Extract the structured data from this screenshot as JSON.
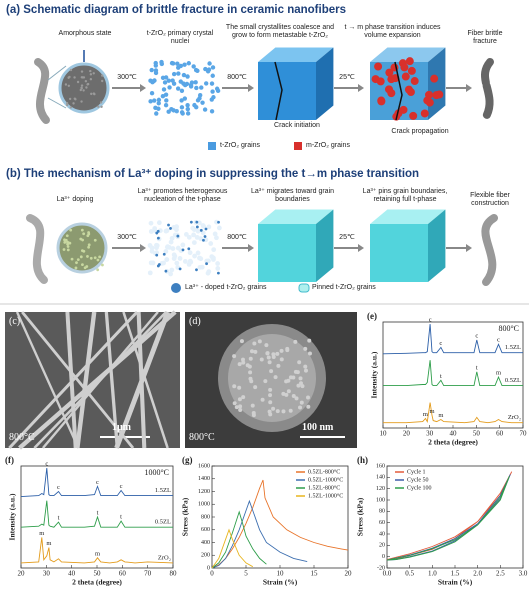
{
  "schematic_a": {
    "title": "(a) Schematic diagram of brittle fracture in ceramic nanofibers",
    "stages": [
      "Amorphous state",
      "t-ZrO₂ primary crystal nuclei",
      "The small crystallites coalesce and grow to form metastable t-ZrO₂",
      "t → m phase transition induces volume expansion",
      "Fiber brittle fracture"
    ],
    "temperatures": [
      "300℃",
      "800℃",
      "25℃"
    ],
    "callouts": [
      "Crack initiation",
      "Crack propagation"
    ],
    "legend": [
      "t-ZrO₂ grains",
      "m-ZrO₂ grains"
    ]
  },
  "schematic_b": {
    "title": "(b) The mechanism of La³⁺ doping in suppressing the t→m phase transition",
    "stages": [
      "La³⁺ doping",
      "La³⁺ promotes heterogenous nucleation of the t-phase",
      "La³⁺ migrates toward grain boundaries",
      "La³⁺ pins grain boundaries, retaining full t-phase",
      "Flexible fiber construction"
    ],
    "temperatures": [
      "300℃",
      "800℃",
      "25℃"
    ],
    "legend": [
      "La³⁺ - doped t-ZrO₂ grains",
      "Pinned t-ZrO₂ grains"
    ]
  },
  "images": [
    {
      "label": "(c)",
      "temperature": "800°C",
      "scale_bar": "1μm"
    },
    {
      "label": "(d)",
      "temperature": "800°C",
      "scale_bar": "100 nm"
    }
  ],
  "charts": [
    {
      "type": "line",
      "label": "(e)",
      "annotation": "800°C",
      "xlabel": "2 theta (degree)",
      "ylabel": "Intensity (a.u.)",
      "xlim": [
        10,
        70
      ],
      "xticks": [
        10,
        20,
        30,
        40,
        50,
        60,
        70
      ],
      "ylim": [
        0,
        100
      ],
      "x": [
        10,
        20,
        27,
        28.2,
        29,
        30.2,
        31,
        31.5,
        33,
        34.8,
        36,
        45,
        49,
        50.2,
        51.5,
        55,
        58,
        59.5,
        61,
        65,
        70
      ],
      "series": [
        {
          "name": "1.5ZL",
          "color": "#2c5fa8",
          "values": [
            70,
            70.5,
            71,
            71,
            72,
            98,
            72,
            71,
            71,
            76,
            71,
            71,
            71,
            83,
            71,
            71,
            71,
            79,
            71,
            71,
            71
          ]
        },
        {
          "name": "0.5ZL",
          "color": "#2e9e4a",
          "values": [
            40,
            40,
            41,
            41,
            43,
            64,
            41,
            40,
            40,
            45,
            40,
            40,
            40,
            53,
            40,
            40,
            40,
            48,
            40,
            40,
            40
          ]
        },
        {
          "name": "ZrO₂",
          "color": "#e39b1b",
          "values": [
            5,
            5,
            6,
            9,
            6,
            24,
            12,
            7,
            6,
            8,
            6,
            5,
            6,
            10,
            6,
            5,
            6,
            8,
            6,
            5,
            5
          ]
        }
      ],
      "annotations": [
        {
          "text": "c",
          "x": 30.2,
          "series": 0
        },
        {
          "text": "c",
          "x": 34.8,
          "series": 0
        },
        {
          "text": "c",
          "x": 50.2,
          "series": 0
        },
        {
          "text": "c",
          "x": 59.5,
          "series": 0
        },
        {
          "text": "t",
          "x": 34.8,
          "series": 1
        },
        {
          "text": "t",
          "x": 50.2,
          "series": 1
        },
        {
          "text": "m",
          "x": 59.5,
          "series": 1
        },
        {
          "text": "m",
          "x": 28.2,
          "series": 2
        },
        {
          "text": "m",
          "x": 31,
          "series": 2
        },
        {
          "text": "m",
          "x": 34.8,
          "series": 2
        }
      ]
    },
    {
      "type": "line",
      "label": "(f)",
      "annotation": "1000°C",
      "xlabel": "2 theta (degree)",
      "ylabel": "Intensity (a.u.)",
      "xlim": [
        20,
        80
      ],
      "xticks": [
        20,
        30,
        40,
        50,
        60,
        70,
        80
      ],
      "ylim": [
        0,
        100
      ],
      "x": [
        20,
        27,
        28.2,
        29,
        30.2,
        31,
        31.5,
        33,
        34.8,
        36,
        45,
        49,
        50.2,
        51.5,
        55,
        58,
        59.5,
        61,
        65,
        70,
        80
      ],
      "series": [
        {
          "name": "1.5ZL",
          "color": "#2c5fa8",
          "values": [
            70,
            71,
            73,
            72,
            98,
            72,
            71,
            71,
            75,
            71,
            71,
            72,
            80,
            71,
            71,
            71,
            76,
            71,
            71,
            71,
            71
          ]
        },
        {
          "name": "0.5ZL",
          "color": "#2e9e4a",
          "values": [
            40,
            41,
            43,
            42,
            66,
            42,
            41,
            40,
            45,
            40,
            40,
            41,
            50,
            40,
            40,
            40,
            46,
            40,
            40,
            40,
            40
          ]
        },
        {
          "name": "ZrO₂",
          "color": "#e39b1b",
          "values": [
            5,
            6,
            30,
            8,
            12,
            20,
            8,
            6,
            9,
            6,
            5,
            6,
            10,
            6,
            5,
            6,
            8,
            6,
            5,
            6,
            5
          ]
        }
      ],
      "annotations": [
        {
          "text": "c",
          "x": 30.2,
          "series": 0
        },
        {
          "text": "c",
          "x": 34.8,
          "series": 0
        },
        {
          "text": "c",
          "x": 50.2,
          "series": 0
        },
        {
          "text": "c",
          "x": 59.5,
          "series": 0
        },
        {
          "text": "t",
          "x": 34.8,
          "series": 1
        },
        {
          "text": "t",
          "x": 50.2,
          "series": 1
        },
        {
          "text": "t",
          "x": 59.5,
          "series": 1
        },
        {
          "text": "m",
          "x": 28.2,
          "series": 2
        },
        {
          "text": "m",
          "x": 31,
          "series": 2
        },
        {
          "text": "m",
          "x": 50.2,
          "series": 2
        }
      ]
    },
    {
      "type": "line",
      "label": "(g)",
      "xlabel": "Strain (%)",
      "ylabel": "Stress (kPa)",
      "legend": "upper right",
      "xlim": [
        0,
        20
      ],
      "xticks": [
        0,
        5,
        10,
        15,
        20
      ],
      "ylim": [
        0,
        1600
      ],
      "yticks": [
        0,
        200,
        400,
        600,
        800,
        1000,
        1200,
        1400,
        1600
      ],
      "series": [
        {
          "name": "0.5ZL-800°C",
          "color": "#e8742a",
          "x": [
            0,
            1,
            2,
            3,
            4,
            5,
            6,
            7,
            7.5,
            7.8,
            9,
            11,
            13,
            15,
            17,
            19,
            20
          ],
          "values": [
            0,
            50,
            150,
            300,
            480,
            700,
            950,
            1250,
            1380,
            1100,
            800,
            600,
            480,
            400,
            340,
            300,
            280
          ]
        },
        {
          "name": "0.5ZL-1000°C",
          "color": "#3d6fb0",
          "x": [
            0,
            1,
            2,
            3,
            4,
            5,
            5.5,
            6,
            7,
            8,
            10,
            12,
            14
          ],
          "values": [
            0,
            40,
            150,
            350,
            600,
            900,
            1050,
            900,
            600,
            400,
            250,
            150,
            100
          ]
        },
        {
          "name": "1.5ZL-800°C",
          "color": "#2e9e4a",
          "x": [
            0,
            1,
            2,
            3,
            4,
            4.5,
            5,
            6,
            7,
            8
          ],
          "values": [
            0,
            80,
            250,
            550,
            880,
            700,
            500,
            300,
            150,
            60
          ]
        },
        {
          "name": "1.5ZL-1000°C",
          "color": "#e8b51f",
          "x": [
            0,
            1,
            2,
            2.5,
            3,
            4,
            5,
            6
          ],
          "values": [
            0,
            150,
            450,
            600,
            450,
            200,
            80,
            20
          ]
        }
      ]
    },
    {
      "type": "line",
      "label": "(h)",
      "xlabel": "Strain (%)",
      "ylabel": "Stress (kPa)",
      "legend": "upper left",
      "xlim": [
        0,
        3
      ],
      "xticks": [
        {
          "value": 0,
          "label": "0.0"
        },
        0.5,
        {
          "value": 1,
          "label": "1.0"
        },
        1.5,
        {
          "value": 2,
          "label": "2.0"
        },
        2.5,
        {
          "value": 3,
          "label": "3.0"
        }
      ],
      "ylim": [
        -20,
        160
      ],
      "yticks": [
        -20,
        0,
        20,
        40,
        60,
        80,
        100,
        120,
        140,
        160
      ],
      "series": [
        {
          "name": "Cycle 1",
          "color": "#e25b3a",
          "x": [
            0,
            0.5,
            1,
            1.5,
            2,
            2.5,
            2.75,
            2.5,
            2,
            1.5,
            1,
            0.5,
            0.2,
            0
          ],
          "values": [
            -5,
            5,
            18,
            35,
            62,
            108,
            150,
            112,
            62,
            32,
            13,
            2,
            -4,
            -5
          ]
        },
        {
          "name": "Cycle 50",
          "color": "#3d5ea8",
          "x": [
            0,
            0.5,
            1,
            1.5,
            2,
            2.5,
            2.72,
            2.5,
            2,
            1.5,
            1,
            0.5,
            0.2,
            0
          ],
          "values": [
            -6,
            3,
            15,
            32,
            58,
            102,
            145,
            108,
            58,
            28,
            10,
            0,
            -5,
            -6
          ]
        },
        {
          "name": "Cycle 100",
          "color": "#2e9e4a",
          "x": [
            0,
            0.5,
            1,
            1.5,
            2,
            2.5,
            2.7,
            2.5,
            2,
            1.5,
            1,
            0.5,
            0.2,
            0
          ],
          "values": [
            -6,
            2,
            14,
            30,
            56,
            100,
            142,
            105,
            56,
            26,
            9,
            -1,
            -5,
            -6
          ]
        }
      ]
    }
  ]
}
